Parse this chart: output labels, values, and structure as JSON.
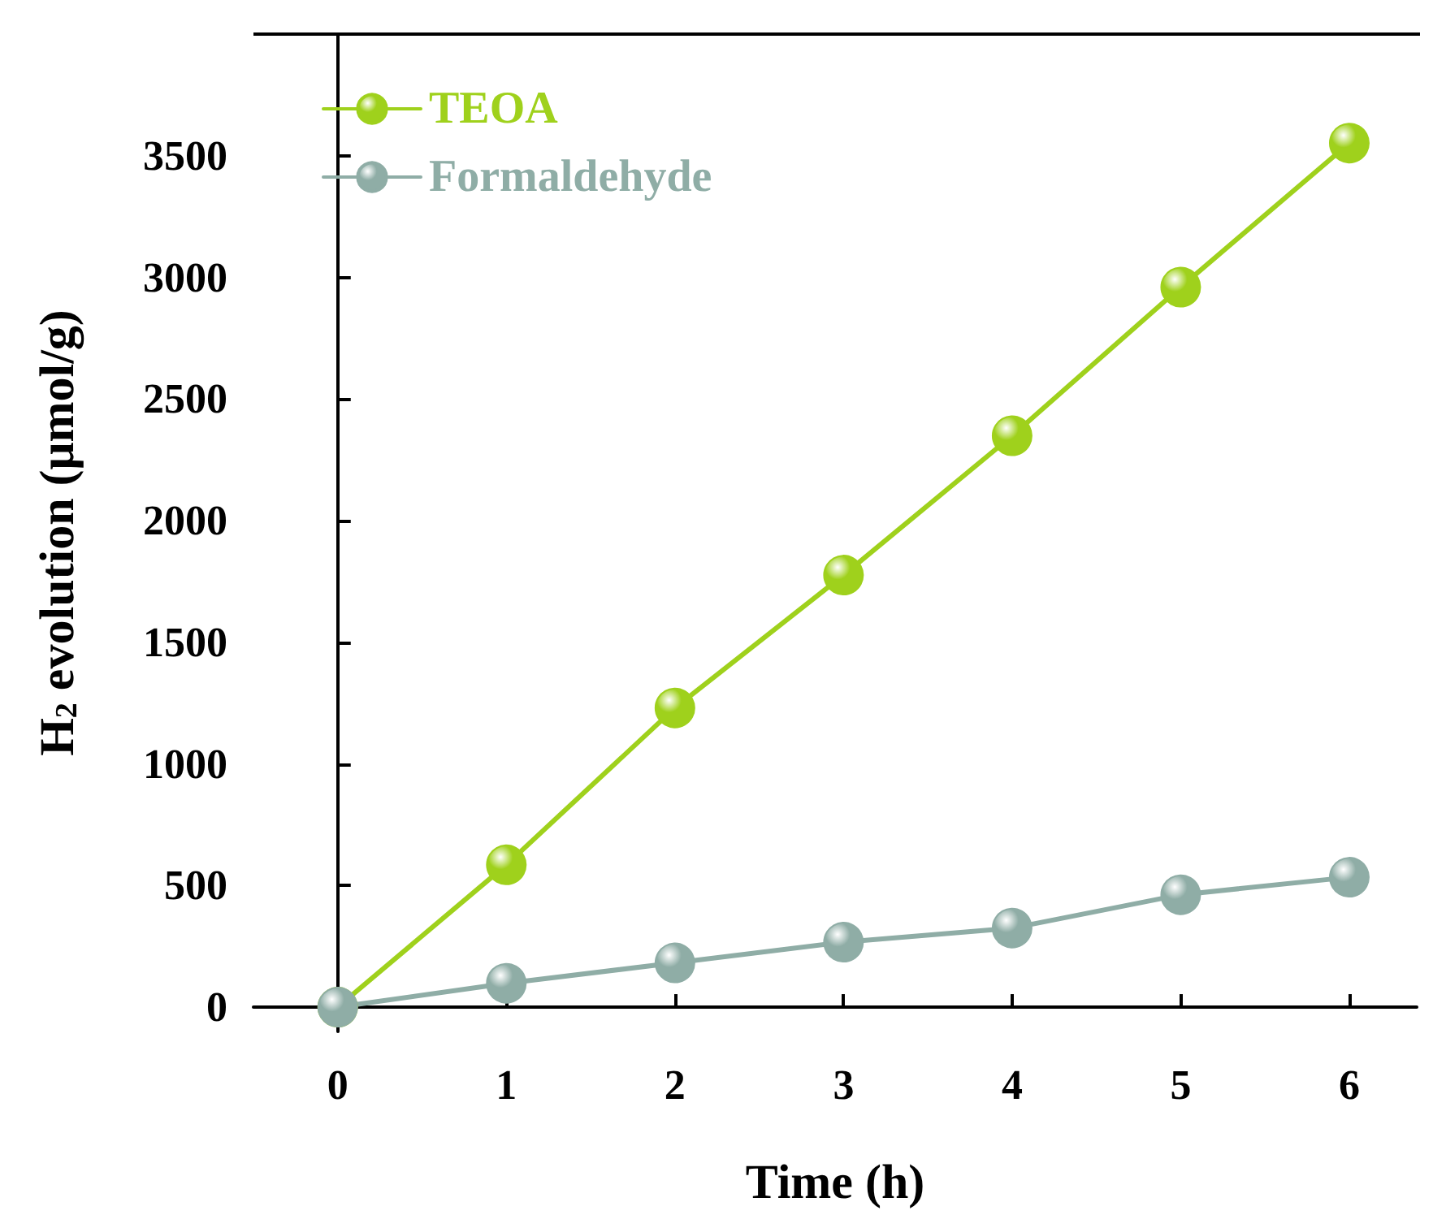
{
  "chart_data": {
    "type": "line",
    "xlabel": "Time (h)",
    "ylabel": "H$_{2}$ evolution (μmol/g)",
    "x": [
      0,
      1,
      2,
      3,
      4,
      5,
      6
    ],
    "series": [
      {
        "name": "TEOA",
        "color": "#9fd11c",
        "values": [
          0,
          585,
          1230,
          1776,
          2349,
          2960,
          3552
        ]
      },
      {
        "name": "Formaldehyde",
        "color": "#8fada6",
        "values": [
          0,
          98,
          182,
          267,
          325,
          462,
          534
        ]
      }
    ],
    "xlim": [
      -0.5,
      6.4
    ],
    "ylim": [
      -100,
      4000
    ],
    "xticks": [
      0,
      1,
      2,
      3,
      4,
      5,
      6
    ],
    "yticks": [
      0,
      500,
      1000,
      1500,
      2000,
      2500,
      3000,
      3500
    ],
    "legend": "top left",
    "marker": "circle",
    "line_style": "solid"
  }
}
